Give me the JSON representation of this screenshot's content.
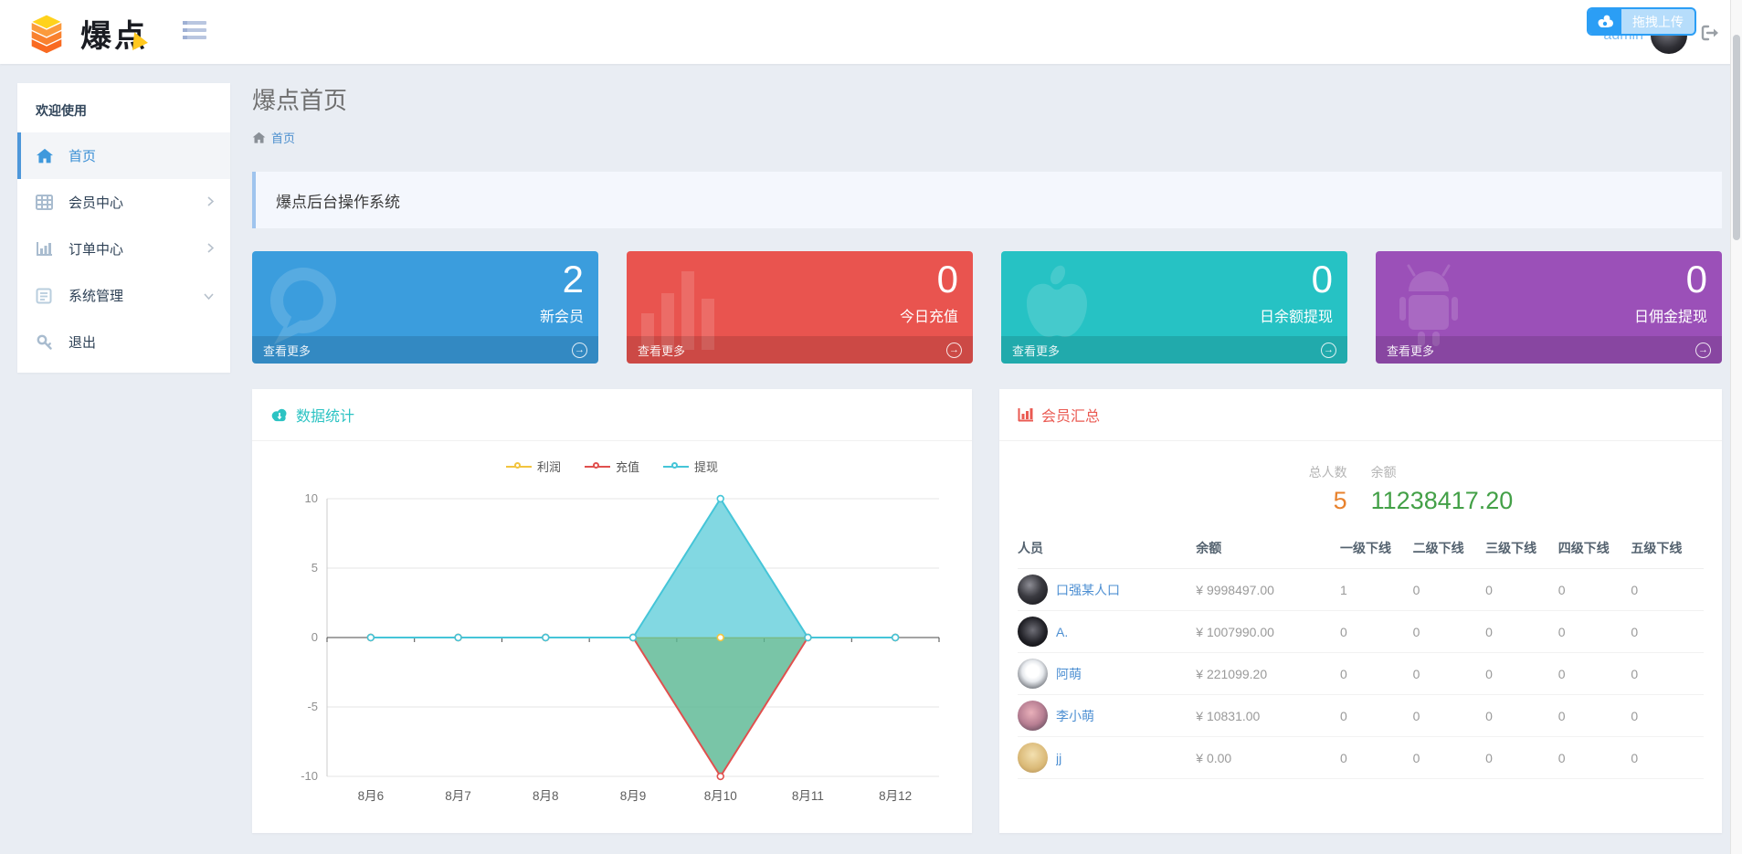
{
  "header": {
    "brand": "爆点",
    "menu_icon": "list-icon",
    "upload_button_label": "拖拽上传",
    "upload_icon": "cloud-share-icon",
    "username": "admin",
    "logout_icon": "sign-out-icon"
  },
  "sidebar": {
    "section_title": "欢迎使用",
    "items": [
      {
        "label": "首页",
        "icon": "home-icon",
        "active": true
      },
      {
        "label": "会员中心",
        "icon": "grid-icon",
        "chevron": "right"
      },
      {
        "label": "订单中心",
        "icon": "bar-chart-icon",
        "chevron": "right"
      },
      {
        "label": "系统管理",
        "icon": "form-icon",
        "chevron": "down"
      },
      {
        "label": "退出",
        "icon": "key-icon"
      }
    ]
  },
  "page": {
    "title": "爆点首页",
    "breadcrumb_home": "首页",
    "welcome_message": "爆点后台操作系统"
  },
  "stat_cards": [
    {
      "value": "2",
      "label": "新会员",
      "more_label": "查看更多",
      "icon": "comment-icon",
      "color": "#3b9ddd"
    },
    {
      "value": "0",
      "label": "今日充值",
      "more_label": "查看更多",
      "icon": "bars-icon",
      "color": "#e9544f"
    },
    {
      "value": "0",
      "label": "日余额提现",
      "more_label": "查看更多",
      "icon": "apple-icon",
      "color": "#26c2c4"
    },
    {
      "value": "0",
      "label": "日佣金提现",
      "more_label": "查看更多",
      "icon": "android-icon",
      "color": "#9b50b8"
    }
  ],
  "chart_panel": {
    "title": "数据统计",
    "icon": "cloud-download-icon"
  },
  "chart_data": {
    "type": "line",
    "title": "数据统计",
    "categories": [
      "8月6",
      "8月7",
      "8月8",
      "8月9",
      "8月10",
      "8月11",
      "8月12"
    ],
    "series": [
      {
        "name": "利润",
        "color": "#f2c43e",
        "values": [
          0,
          0,
          0,
          0,
          0,
          0,
          0
        ]
      },
      {
        "name": "充值",
        "color": "#e0504e",
        "fill": "#5cb894",
        "values": [
          0,
          0,
          0,
          0,
          -10,
          0,
          0
        ]
      },
      {
        "name": "提现",
        "color": "#45c5d8",
        "fill": "#67cfdc",
        "values": [
          0,
          0,
          0,
          0,
          10,
          0,
          0
        ]
      }
    ],
    "ylim": [
      -10,
      10
    ],
    "yticks": [
      10,
      5,
      0,
      -5,
      -10
    ],
    "legend_position": "top-center",
    "grid": true
  },
  "member_panel": {
    "title": "会员汇总",
    "icon": "bar-chart-icon",
    "stats": [
      {
        "label": "总人数",
        "value": "5",
        "color": "#e8822d"
      },
      {
        "label": "余额",
        "value": "11238417.20",
        "color": "#43a047"
      }
    ],
    "columns": [
      "人员",
      "余额",
      "一级下线",
      "二级下线",
      "三级下线",
      "四级下线",
      "五级下线"
    ],
    "rows": [
      {
        "name": "口强某人口",
        "balance": "¥ 9998497.00",
        "downlines": [
          "1",
          "0",
          "0",
          "0",
          "0"
        ]
      },
      {
        "name": "A.",
        "balance": "¥ 1007990.00",
        "downlines": [
          "0",
          "0",
          "0",
          "0",
          "0"
        ]
      },
      {
        "name": "阿萌",
        "balance": "¥ 221099.20",
        "downlines": [
          "0",
          "0",
          "0",
          "0",
          "0"
        ]
      },
      {
        "name": "李小萌",
        "balance": "¥ 10831.00",
        "downlines": [
          "0",
          "0",
          "0",
          "0",
          "0"
        ]
      },
      {
        "name": "jj",
        "balance": "¥ 0.00",
        "downlines": [
          "0",
          "0",
          "0",
          "0",
          "0"
        ]
      }
    ]
  }
}
